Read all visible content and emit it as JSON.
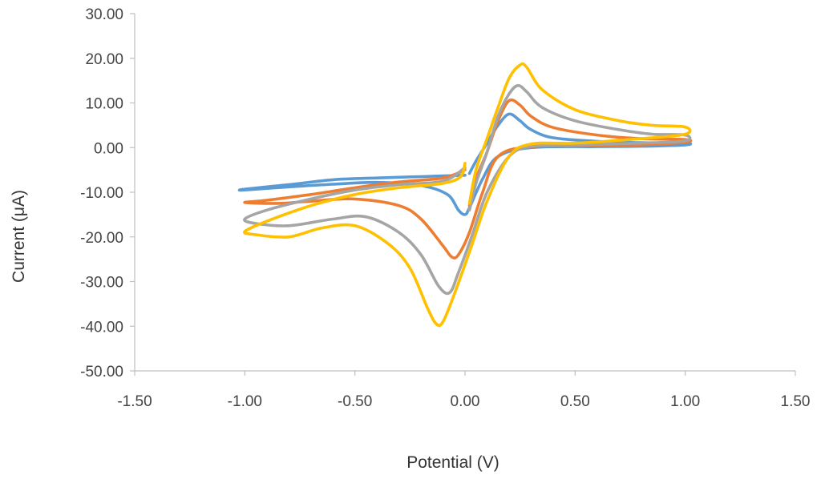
{
  "chart_data": {
    "type": "line",
    "title": "",
    "xlabel": "Potential (V)",
    "ylabel": "Current (μA)",
    "xlim": [
      -1.5,
      1.5
    ],
    "ylim": [
      -50,
      30
    ],
    "x_ticks": [
      "-1.50",
      "-1.00",
      "-0.50",
      "0.00",
      "0.50",
      "1.00",
      "1.50"
    ],
    "y_ticks": [
      "30.00",
      "20.00",
      "10.00",
      "0.00",
      "-10.00",
      "-20.00",
      "-30.00",
      "-40.00",
      "-50.00"
    ],
    "grid": false,
    "legend": "none",
    "series": [
      {
        "color": "#5b9bd5",
        "points": [
          [
            0.02,
            -5.8
          ],
          [
            0.05,
            -3.0
          ],
          [
            0.1,
            1.0
          ],
          [
            0.15,
            5.0
          ],
          [
            0.2,
            7.5
          ],
          [
            0.25,
            6.0
          ],
          [
            0.3,
            4.0
          ],
          [
            0.4,
            2.2
          ],
          [
            0.6,
            1.4
          ],
          [
            0.8,
            1.1
          ],
          [
            1.0,
            1.0
          ],
          [
            1.0,
            0.6
          ],
          [
            0.8,
            0.3
          ],
          [
            0.6,
            0.2
          ],
          [
            0.3,
            0.0
          ],
          [
            0.15,
            -2.0
          ],
          [
            0.08,
            -7.0
          ],
          [
            0.02,
            -13.5
          ],
          [
            0.0,
            -15.0
          ],
          [
            -0.03,
            -14.0
          ],
          [
            -0.08,
            -10.5
          ],
          [
            -0.2,
            -8.5
          ],
          [
            -0.4,
            -7.8
          ],
          [
            -0.6,
            -8.2
          ],
          [
            -0.8,
            -8.8
          ],
          [
            -1.0,
            -9.5
          ],
          [
            -1.0,
            -9.3
          ],
          [
            -0.8,
            -8.3
          ],
          [
            -0.6,
            -7.2
          ],
          [
            -0.4,
            -6.8
          ],
          [
            -0.2,
            -6.5
          ],
          [
            0.0,
            -6.2
          ]
        ]
      },
      {
        "color": "#ed7d31",
        "points": [
          [
            0.02,
            -13.0
          ],
          [
            0.05,
            -7.0
          ],
          [
            0.1,
            -1.0
          ],
          [
            0.15,
            6.0
          ],
          [
            0.2,
            10.5
          ],
          [
            0.25,
            9.5
          ],
          [
            0.3,
            7.0
          ],
          [
            0.4,
            4.5
          ],
          [
            0.6,
            2.8
          ],
          [
            0.8,
            2.0
          ],
          [
            1.0,
            1.8
          ],
          [
            1.0,
            1.2
          ],
          [
            0.8,
            0.6
          ],
          [
            0.6,
            0.4
          ],
          [
            0.3,
            0.2
          ],
          [
            0.15,
            -2.0
          ],
          [
            0.08,
            -10.0
          ],
          [
            0.02,
            -19.0
          ],
          [
            -0.03,
            -24.0
          ],
          [
            -0.06,
            -24.5
          ],
          [
            -0.1,
            -22.0
          ],
          [
            -0.2,
            -16.0
          ],
          [
            -0.3,
            -13.0
          ],
          [
            -0.5,
            -11.5
          ],
          [
            -0.7,
            -12.0
          ],
          [
            -0.85,
            -12.5
          ],
          [
            -1.0,
            -12.3
          ],
          [
            -0.9,
            -11.8
          ],
          [
            -0.7,
            -10.5
          ],
          [
            -0.5,
            -9.0
          ],
          [
            -0.3,
            -7.7
          ],
          [
            -0.1,
            -6.8
          ],
          [
            0.0,
            -5.0
          ]
        ]
      },
      {
        "color": "#a5a5a5",
        "points": [
          [
            0.02,
            -14.0
          ],
          [
            0.05,
            -8.0
          ],
          [
            0.1,
            -1.0
          ],
          [
            0.15,
            7.0
          ],
          [
            0.2,
            12.0
          ],
          [
            0.24,
            13.9
          ],
          [
            0.28,
            12.5
          ],
          [
            0.35,
            9.0
          ],
          [
            0.5,
            6.0
          ],
          [
            0.7,
            4.0
          ],
          [
            0.85,
            3.0
          ],
          [
            1.0,
            2.8
          ],
          [
            1.0,
            1.5
          ],
          [
            0.8,
            1.0
          ],
          [
            0.5,
            0.6
          ],
          [
            0.3,
            0.3
          ],
          [
            0.2,
            -2.0
          ],
          [
            0.1,
            -10.0
          ],
          [
            0.03,
            -20.0
          ],
          [
            -0.03,
            -28.0
          ],
          [
            -0.07,
            -32.5
          ],
          [
            -0.12,
            -31.0
          ],
          [
            -0.2,
            -24.0
          ],
          [
            -0.3,
            -19.0
          ],
          [
            -0.45,
            -15.5
          ],
          [
            -0.6,
            -16.0
          ],
          [
            -0.8,
            -17.5
          ],
          [
            -0.95,
            -17.0
          ],
          [
            -1.0,
            -16.0
          ],
          [
            -0.9,
            -14.0
          ],
          [
            -0.7,
            -11.5
          ],
          [
            -0.5,
            -9.5
          ],
          [
            -0.3,
            -8.3
          ],
          [
            -0.1,
            -7.5
          ],
          [
            0.0,
            -4.5
          ]
        ]
      },
      {
        "color": "#ffc000",
        "points": [
          [
            0.02,
            -12.5
          ],
          [
            0.05,
            -5.0
          ],
          [
            0.1,
            2.0
          ],
          [
            0.15,
            9.0
          ],
          [
            0.2,
            15.5
          ],
          [
            0.25,
            18.5
          ],
          [
            0.28,
            18.0
          ],
          [
            0.35,
            13.0
          ],
          [
            0.5,
            8.5
          ],
          [
            0.7,
            6.0
          ],
          [
            0.85,
            5.0
          ],
          [
            1.0,
            4.6
          ],
          [
            1.0,
            3.0
          ],
          [
            0.8,
            2.0
          ],
          [
            0.5,
            1.0
          ],
          [
            0.3,
            0.8
          ],
          [
            0.2,
            -2.0
          ],
          [
            0.1,
            -12.0
          ],
          [
            0.03,
            -22.0
          ],
          [
            -0.05,
            -33.0
          ],
          [
            -0.1,
            -39.0
          ],
          [
            -0.13,
            -39.5
          ],
          [
            -0.17,
            -36.0
          ],
          [
            -0.25,
            -27.0
          ],
          [
            -0.35,
            -21.5
          ],
          [
            -0.5,
            -17.5
          ],
          [
            -0.65,
            -18.0
          ],
          [
            -0.8,
            -20.0
          ],
          [
            -0.95,
            -19.5
          ],
          [
            -1.0,
            -18.8
          ],
          [
            -0.9,
            -16.5
          ],
          [
            -0.7,
            -13.0
          ],
          [
            -0.5,
            -10.5
          ],
          [
            -0.3,
            -9.0
          ],
          [
            -0.1,
            -8.0
          ],
          [
            -0.02,
            -6.5
          ],
          [
            0.0,
            -3.5
          ]
        ]
      }
    ]
  }
}
